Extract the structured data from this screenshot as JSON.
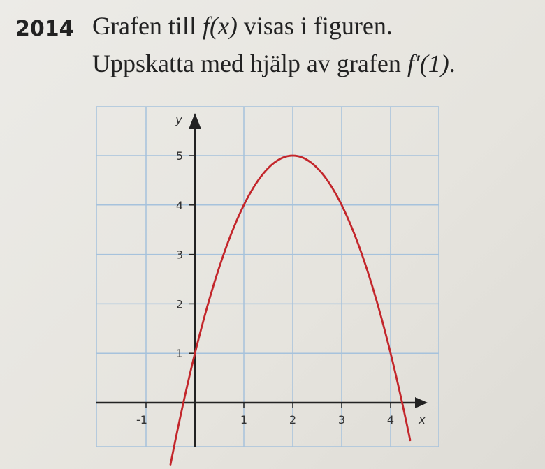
{
  "problem": {
    "number": "2014",
    "line1_prefix": "Grafen till ",
    "line1_func": "f(x)",
    "line1_suffix": " visas i figuren.",
    "line2_prefix": "Uppskatta med hjälp av grafen ",
    "line2_func": "f′(1)",
    "line2_suffix": "."
  },
  "chart_data": {
    "type": "line",
    "xlabel": "x",
    "ylabel": "y",
    "xlim": [
      -2,
      5
    ],
    "ylim": [
      -0.9,
      6
    ],
    "x_ticks": [
      -1,
      1,
      2,
      3,
      4
    ],
    "x_tick_labels": [
      "-1",
      "1",
      "2",
      "3",
      "4"
    ],
    "y_ticks": [
      1,
      2,
      3,
      4,
      5
    ],
    "y_tick_labels": [
      "1",
      "2",
      "3",
      "4",
      "5"
    ],
    "grid": true,
    "series": [
      {
        "x": [
          -0.5,
          0,
          0.5,
          1,
          1.5,
          2,
          2.5,
          3,
          3.5,
          4,
          4.4
        ],
        "y": [
          -1.25,
          1,
          2.75,
          4,
          4.75,
          5,
          4.75,
          4,
          2.75,
          1,
          -0.76
        ],
        "color": "#c3262b"
      }
    ],
    "colors": {
      "grid": "#a6c2dc",
      "axis": "#222222",
      "curve": "#c3262b"
    }
  }
}
